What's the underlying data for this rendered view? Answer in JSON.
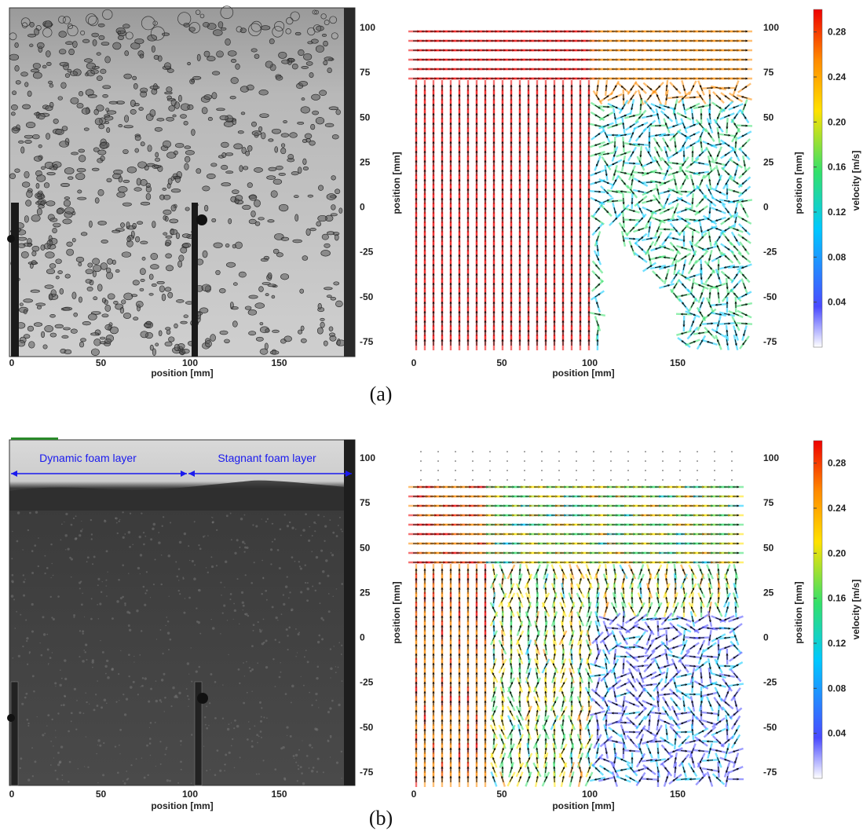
{
  "figure": {
    "panels": [
      {
        "id": "a",
        "caption": "(a)",
        "photo_xlabel": "position [mm]",
        "field_xlabel": "position [mm]",
        "field_ylabel": "position [mm]",
        "colorbar_label": "velocity [m/s]",
        "annotations": []
      },
      {
        "id": "b",
        "caption": "(b)",
        "photo_xlabel": "position [mm]",
        "field_xlabel": "position [mm]",
        "field_ylabel": "position [mm]",
        "colorbar_label": "velocity [m/s]",
        "annotations": [
          "Dynamic foam layer",
          "Stagnant foam layer"
        ]
      }
    ],
    "x_ticks": [
      "0",
      "50",
      "100",
      "150"
    ],
    "y_ticks": [
      "100",
      "75",
      "50",
      "25",
      "0",
      "-25",
      "-50",
      "-75"
    ],
    "colorbar_ticks": [
      "0.28",
      "0.24",
      "0.20",
      "0.16",
      "0.12",
      "0.08",
      "0.04"
    ],
    "colorbar_colors": [
      "#ffffff",
      "#4a4aff",
      "#00c8ff",
      "#34e06a",
      "#ffe100",
      "#ff8a00",
      "#ee0000"
    ]
  },
  "chart_data": [
    {
      "type": "heatmap",
      "title": "",
      "xlabel": "position [mm]",
      "ylabel": "position [mm]",
      "xlim": [
        0,
        195
      ],
      "ylim": [
        -80,
        110
      ],
      "colorbar": {
        "label": "velocity [m/s]",
        "range": [
          0,
          0.3
        ]
      }
    },
    {
      "type": "heatmap",
      "title": "",
      "xlabel": "position [mm]",
      "ylabel": "position [mm]",
      "xlim": [
        0,
        195
      ],
      "ylim": [
        -80,
        110
      ],
      "colorbar": {
        "label": "velocity [m/s]",
        "range": [
          0,
          0.3
        ]
      }
    }
  ]
}
